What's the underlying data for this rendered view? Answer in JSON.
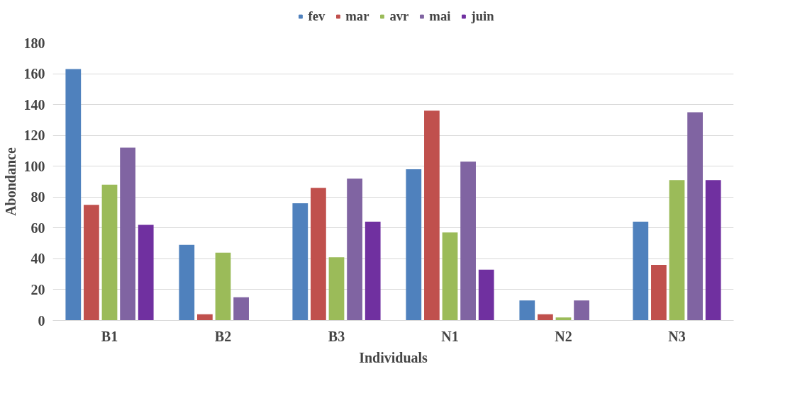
{
  "chart_data": {
    "type": "bar",
    "xlabel": "Individuals",
    "ylabel": "Abondance",
    "categories": [
      "B1",
      "B2",
      "B3",
      "N1",
      "N2",
      "N3"
    ],
    "series": [
      {
        "name": "fev",
        "color": "#4f81bd",
        "values": [
          163,
          49,
          76,
          98,
          13,
          64
        ]
      },
      {
        "name": "mar",
        "color": "#c0504d",
        "values": [
          75,
          4,
          86,
          136,
          4,
          36
        ]
      },
      {
        "name": "avr",
        "color": "#9bbb59",
        "values": [
          88,
          44,
          41,
          57,
          2,
          91
        ]
      },
      {
        "name": "mai",
        "color": "#8064a2",
        "values": [
          112,
          15,
          92,
          103,
          13,
          135
        ]
      },
      {
        "name": "juin",
        "color": "#7030a0",
        "values": [
          62,
          0,
          64,
          33,
          0,
          91
        ]
      }
    ],
    "ylim": [
      0,
      180
    ],
    "yticks": [
      0,
      20,
      40,
      60,
      80,
      100,
      120,
      140,
      160,
      180
    ],
    "grid": "y",
    "legend": "top"
  }
}
